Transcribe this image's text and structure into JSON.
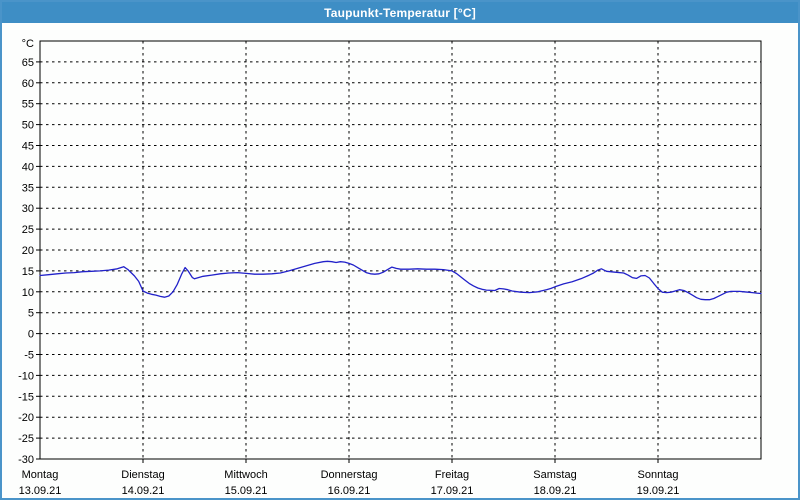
{
  "window": {
    "title": "Taupunkt-Temperatur [°C]"
  },
  "colors": {
    "titlebar_bg": "#3E8EC5",
    "titlebar_text": "#FFFFFF",
    "window_border": "#4A94C9",
    "plot_bg": "#FDFEFD",
    "grid": "#000000",
    "axis": "#000000",
    "label_text": "#000000",
    "line": "#2121C9"
  },
  "chart_data": {
    "type": "line",
    "title": "Taupunkt-Temperatur [°C]",
    "ylabel": "",
    "xlabel": "",
    "y_unit": "°C",
    "ylim": [
      -30,
      70
    ],
    "ytick_step": 5,
    "yticks_labeled_max": 65,
    "grid": "dashed",
    "legend_position": "none",
    "x_hours_range": [
      0,
      168
    ],
    "x_day_ticks_hours": [
      24,
      48,
      72,
      96,
      120,
      144
    ],
    "x_labels": [
      {
        "day": "Montag",
        "date": "13.09.21",
        "hour": 0
      },
      {
        "day": "Dienstag",
        "date": "14.09.21",
        "hour": 24
      },
      {
        "day": "Mittwoch",
        "date": "15.09.21",
        "hour": 48
      },
      {
        "day": "Donnerstag",
        "date": "16.09.21",
        "hour": 72
      },
      {
        "day": "Freitag",
        "date": "17.09.21",
        "hour": 96
      },
      {
        "day": "Samstag",
        "date": "18.09.21",
        "hour": 120
      },
      {
        "day": "Sonntag",
        "date": "19.09.21",
        "hour": 144
      }
    ],
    "series": [
      {
        "name": "Taupunkt-Temperatur",
        "color": "#2121C9",
        "points_hours_value": [
          [
            0,
            13.9
          ],
          [
            2,
            14.1
          ],
          [
            4,
            14.3
          ],
          [
            6,
            14.5
          ],
          [
            8,
            14.6
          ],
          [
            10,
            14.8
          ],
          [
            12,
            14.9
          ],
          [
            14,
            15.0
          ],
          [
            16,
            15.2
          ],
          [
            18,
            15.5
          ],
          [
            19.5,
            16.0
          ],
          [
            20.5,
            15.3
          ],
          [
            22,
            13.8
          ],
          [
            23,
            12.5
          ],
          [
            24,
            10.2
          ],
          [
            25,
            9.7
          ],
          [
            26,
            9.4
          ],
          [
            27,
            9.2
          ],
          [
            28,
            8.9
          ],
          [
            29,
            8.7
          ],
          [
            30,
            9.0
          ],
          [
            31,
            10.0
          ],
          [
            32,
            11.8
          ],
          [
            33,
            14.2
          ],
          [
            33.8,
            15.8
          ],
          [
            34.5,
            15.0
          ],
          [
            35.5,
            13.4
          ],
          [
            36,
            13.1
          ],
          [
            38,
            13.7
          ],
          [
            40,
            14.0
          ],
          [
            42,
            14.3
          ],
          [
            44,
            14.5
          ],
          [
            46,
            14.6
          ],
          [
            48,
            14.4
          ],
          [
            50,
            14.2
          ],
          [
            52,
            14.2
          ],
          [
            54,
            14.3
          ],
          [
            56,
            14.5
          ],
          [
            58,
            15.0
          ],
          [
            60,
            15.6
          ],
          [
            62,
            16.2
          ],
          [
            64,
            16.8
          ],
          [
            66,
            17.2
          ],
          [
            67,
            17.3
          ],
          [
            68,
            17.2
          ],
          [
            69,
            17.0
          ],
          [
            70,
            17.2
          ],
          [
            71,
            17.1
          ],
          [
            72,
            16.8
          ],
          [
            73,
            16.4
          ],
          [
            74,
            15.8
          ],
          [
            75,
            15.2
          ],
          [
            76,
            14.6
          ],
          [
            77,
            14.3
          ],
          [
            78,
            14.2
          ],
          [
            79,
            14.3
          ],
          [
            80,
            14.7
          ],
          [
            81,
            15.3
          ],
          [
            82,
            15.9
          ],
          [
            83,
            15.6
          ],
          [
            84,
            15.4
          ],
          [
            86,
            15.4
          ],
          [
            88,
            15.5
          ],
          [
            90,
            15.4
          ],
          [
            92,
            15.4
          ],
          [
            94,
            15.3
          ],
          [
            96,
            15.0
          ],
          [
            97,
            14.4
          ],
          [
            98,
            13.6
          ],
          [
            99,
            12.8
          ],
          [
            100,
            12.0
          ],
          [
            101,
            11.4
          ],
          [
            102,
            10.9
          ],
          [
            103,
            10.6
          ],
          [
            104,
            10.4
          ],
          [
            106,
            10.3
          ],
          [
            107,
            10.8
          ],
          [
            108,
            10.7
          ],
          [
            109,
            10.5
          ],
          [
            110,
            10.2
          ],
          [
            112,
            9.9
          ],
          [
            114,
            9.8
          ],
          [
            116,
            10.0
          ],
          [
            118,
            10.5
          ],
          [
            119,
            10.8
          ],
          [
            120,
            11.2
          ],
          [
            122,
            11.9
          ],
          [
            124,
            12.4
          ],
          [
            126,
            13.1
          ],
          [
            128,
            14.0
          ],
          [
            129,
            14.5
          ],
          [
            130,
            15.2
          ],
          [
            130.8,
            15.5
          ],
          [
            132,
            14.9
          ],
          [
            134,
            14.7
          ],
          [
            136,
            14.5
          ],
          [
            137,
            14.0
          ],
          [
            138,
            13.4
          ],
          [
            139,
            13.2
          ],
          [
            140,
            13.8
          ],
          [
            141,
            13.9
          ],
          [
            142,
            13.3
          ],
          [
            143,
            12.0
          ],
          [
            144,
            10.8
          ],
          [
            145,
            9.9
          ],
          [
            146,
            9.8
          ],
          [
            147,
            9.9
          ],
          [
            148,
            10.2
          ],
          [
            149,
            10.5
          ],
          [
            150,
            10.3
          ],
          [
            151,
            9.8
          ],
          [
            152,
            9.2
          ],
          [
            153,
            8.6
          ],
          [
            154,
            8.2
          ],
          [
            155,
            8.1
          ],
          [
            156,
            8.1
          ],
          [
            157,
            8.4
          ],
          [
            158,
            8.9
          ],
          [
            159,
            9.4
          ],
          [
            160,
            9.9
          ],
          [
            161,
            10.1
          ],
          [
            162,
            10.1
          ],
          [
            163,
            10.1
          ],
          [
            164,
            10.0
          ],
          [
            165,
            9.9
          ],
          [
            166,
            9.8
          ],
          [
            167,
            9.7
          ],
          [
            168,
            9.6
          ]
        ]
      }
    ]
  }
}
